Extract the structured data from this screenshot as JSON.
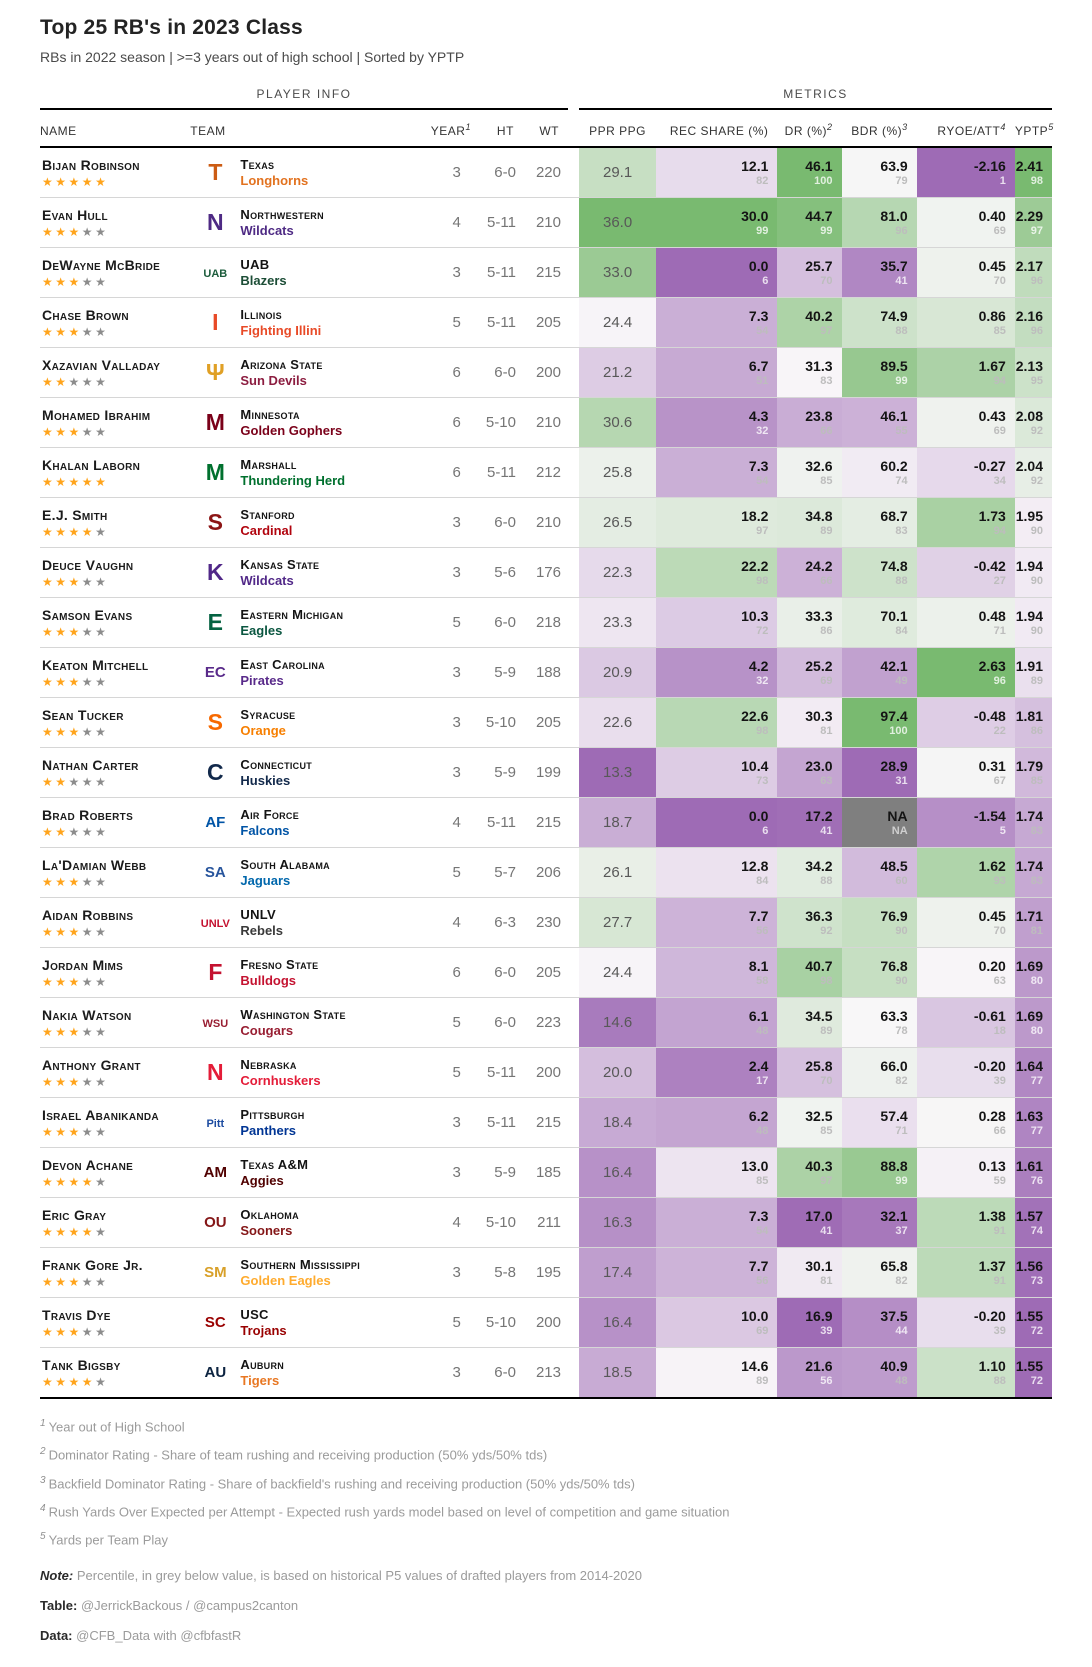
{
  "title": "Top 25 RB's in 2023 Class",
  "subtitle": "RBs in 2022 season | >=3 years out of high school | Sorted by YPTP",
  "header": {
    "spanners": {
      "player_info": "PLAYER INFO",
      "metrics": "METRICS"
    },
    "cols": {
      "name": "NAME",
      "team": "TEAM",
      "year": "YEAR",
      "year_sup": "1",
      "ht": "HT",
      "wt": "WT",
      "ppr": "PPR PPG",
      "rec": "REC SHARE (%)",
      "dr": "DR (%)",
      "dr_sup": "2",
      "bdr": "BDR (%)",
      "bdr_sup": "3",
      "ryoe": "RYOE/ATT",
      "ryoe_sup": "4",
      "yptp": "YPTP",
      "yptp_sup": "5"
    }
  },
  "colors": {
    "green": "#79ba70",
    "white": "#f9f7f9",
    "purple": "#9e6bb5",
    "na_bg": "#7f7f7f",
    "star_filled": "#ffa41c",
    "star_empty": "#8c8c8c",
    "pct_grey": "#bdbdbd",
    "pct_light": "rgba(255,255,255,0.78)"
  },
  "chart_data": {
    "type": "table",
    "title": "Top 25 RB's in 2023 Class",
    "subtitle": "RBs in 2022 season | >=3 years out of high school | Sorted by YPTP",
    "columns": [
      "NAME",
      "TEAM",
      "YEAR",
      "HT",
      "WT",
      "PPR PPG",
      "REC SHARE (%)",
      "DR (%)",
      "BDR (%)",
      "RYOE/ATT",
      "YPTP"
    ],
    "metric_ranges": {
      "ppr": [
        13.3,
        36.0
      ],
      "rec": [
        0.0,
        30.0
      ],
      "dr": [
        16.9,
        46.1
      ],
      "bdr": [
        28.9,
        97.4
      ],
      "ryoe": [
        -2.16,
        2.63
      ],
      "yptp": [
        1.55,
        2.41
      ]
    },
    "rows": [
      {
        "name": "Bijan Robinson",
        "stars": 5,
        "logo": {
          "text": "T",
          "color": "#cc5c14"
        },
        "school": "Texas",
        "nickname": "Longhorns",
        "nick_color": "#e2721f",
        "year": "3",
        "ht": "6-0",
        "wt": "220",
        "ppr": "29.1",
        "rec": "12.1",
        "rec_p": "82",
        "dr": "46.1",
        "dr_p": "100",
        "bdr": "63.9",
        "bdr_p": "79",
        "ryoe": "-2.16",
        "ryoe_p": "1",
        "yptp": "2.41",
        "yptp_p": "98"
      },
      {
        "name": "Evan Hull",
        "stars": 3,
        "logo": {
          "text": "N",
          "color": "#4e2a84"
        },
        "school": "Northwestern",
        "nickname": "Wildcats",
        "nick_color": "#4e2a84",
        "year": "4",
        "ht": "5-11",
        "wt": "210",
        "ppr": "36.0",
        "rec": "30.0",
        "rec_p": "99",
        "dr": "44.7",
        "dr_p": "99",
        "bdr": "81.0",
        "bdr_p": "96",
        "ryoe": "0.40",
        "ryoe_p": "69",
        "yptp": "2.29",
        "yptp_p": "97"
      },
      {
        "name": "DeWayne McBride",
        "stars": 3,
        "logo": {
          "text": "UAB",
          "color": "#1c5c3c"
        },
        "school": "UAB",
        "nickname": "Blazers",
        "nick_color": "#1c4d36",
        "year": "3",
        "ht": "5-11",
        "wt": "215",
        "ppr": "33.0",
        "rec": "0.0",
        "rec_p": "6",
        "dr": "25.7",
        "dr_p": "70",
        "bdr": "35.7",
        "bdr_p": "41",
        "ryoe": "0.45",
        "ryoe_p": "70",
        "yptp": "2.17",
        "yptp_p": "96"
      },
      {
        "name": "Chase Brown",
        "stars": 3,
        "logo": {
          "text": "I",
          "color": "#e84a27"
        },
        "school": "Illinois",
        "nickname": "Fighting Illini",
        "nick_color": "#e84a27",
        "year": "5",
        "ht": "5-11",
        "wt": "205",
        "ppr": "24.4",
        "rec": "7.3",
        "rec_p": "54",
        "dr": "40.2",
        "dr_p": "97",
        "bdr": "74.9",
        "bdr_p": "88",
        "ryoe": "0.86",
        "ryoe_p": "85",
        "yptp": "2.16",
        "yptp_p": "96"
      },
      {
        "name": "Xazavian Valladay",
        "stars": 2,
        "logo": {
          "text": "Ψ",
          "color": "#e0a025"
        },
        "school": "Arizona State",
        "nickname": "Sun Devils",
        "nick_color": "#8c1d40",
        "year": "6",
        "ht": "6-0",
        "wt": "200",
        "ppr": "21.2",
        "rec": "6.7",
        "rec_p": "51",
        "dr": "31.3",
        "dr_p": "83",
        "bdr": "89.5",
        "bdr_p": "99",
        "ryoe": "1.67",
        "ryoe_p": "94",
        "yptp": "2.13",
        "yptp_p": "95"
      },
      {
        "name": "Mohamed Ibrahim",
        "stars": 3,
        "logo": {
          "text": "M",
          "color": "#7a0019"
        },
        "school": "Minnesota",
        "nickname": "Golden Gophers",
        "nick_color": "#7a0019",
        "year": "6",
        "ht": "5-10",
        "wt": "210",
        "ppr": "30.6",
        "rec": "4.3",
        "rec_p": "32",
        "dr": "23.8",
        "dr_p": "66",
        "bdr": "46.1",
        "bdr_p": "55",
        "ryoe": "0.43",
        "ryoe_p": "69",
        "yptp": "2.08",
        "yptp_p": "92"
      },
      {
        "name": "Khalan Laborn",
        "stars": 5,
        "logo": {
          "text": "M",
          "color": "#00702e"
        },
        "school": "Marshall",
        "nickname": "Thundering Herd",
        "nick_color": "#00702e",
        "year": "6",
        "ht": "5-11",
        "wt": "212",
        "ppr": "25.8",
        "rec": "7.3",
        "rec_p": "54",
        "dr": "32.6",
        "dr_p": "85",
        "bdr": "60.2",
        "bdr_p": "74",
        "ryoe": "-0.27",
        "ryoe_p": "34",
        "yptp": "2.04",
        "yptp_p": "92"
      },
      {
        "name": "E.J. Smith",
        "stars": 4,
        "logo": {
          "text": "S",
          "color": "#8c1515"
        },
        "school": "Stanford",
        "nickname": "Cardinal",
        "nick_color": "#b1040e",
        "year": "3",
        "ht": "6-0",
        "wt": "210",
        "ppr": "26.5",
        "rec": "18.2",
        "rec_p": "97",
        "dr": "34.8",
        "dr_p": "89",
        "bdr": "68.7",
        "bdr_p": "83",
        "ryoe": "1.73",
        "ryoe_p": "94",
        "yptp": "1.95",
        "yptp_p": "90"
      },
      {
        "name": "Deuce Vaughn",
        "stars": 3,
        "logo": {
          "text": "K",
          "color": "#512888"
        },
        "school": "Kansas State",
        "nickname": "Wildcats",
        "nick_color": "#512888",
        "year": "3",
        "ht": "5-6",
        "wt": "176",
        "ppr": "22.3",
        "rec": "22.2",
        "rec_p": "98",
        "dr": "24.2",
        "dr_p": "66",
        "bdr": "74.8",
        "bdr_p": "88",
        "ryoe": "-0.42",
        "ryoe_p": "27",
        "yptp": "1.94",
        "yptp_p": "90"
      },
      {
        "name": "Samson Evans",
        "stars": 3,
        "logo": {
          "text": "E",
          "color": "#046241"
        },
        "school": "Eastern Michigan",
        "nickname": "Eagles",
        "nick_color": "#0a5640",
        "year": "5",
        "ht": "6-0",
        "wt": "218",
        "ppr": "23.3",
        "rec": "10.3",
        "rec_p": "72",
        "dr": "33.3",
        "dr_p": "86",
        "bdr": "70.1",
        "bdr_p": "84",
        "ryoe": "0.48",
        "ryoe_p": "71",
        "yptp": "1.94",
        "yptp_p": "90"
      },
      {
        "name": "Keaton Mitchell",
        "stars": 3,
        "logo": {
          "text": "EC",
          "color": "#592a8a"
        },
        "school": "East Carolina",
        "nickname": "Pirates",
        "nick_color": "#592a8a",
        "year": "3",
        "ht": "5-9",
        "wt": "188",
        "ppr": "20.9",
        "rec": "4.2",
        "rec_p": "32",
        "dr": "25.2",
        "dr_p": "69",
        "bdr": "42.1",
        "bdr_p": "49",
        "ryoe": "2.63",
        "ryoe_p": "96",
        "yptp": "1.91",
        "yptp_p": "89"
      },
      {
        "name": "Sean Tucker",
        "stars": 3,
        "logo": {
          "text": "S",
          "color": "#f76900"
        },
        "school": "Syracuse",
        "nickname": "Orange",
        "nick_color": "#f77f00",
        "year": "3",
        "ht": "5-10",
        "wt": "205",
        "ppr": "22.6",
        "rec": "22.6",
        "rec_p": "98",
        "dr": "30.3",
        "dr_p": "81",
        "bdr": "97.4",
        "bdr_p": "100",
        "ryoe": "-0.48",
        "ryoe_p": "22",
        "yptp": "1.81",
        "yptp_p": "86"
      },
      {
        "name": "Nathan Carter",
        "stars": 2,
        "logo": {
          "text": "C",
          "color": "#12294b"
        },
        "school": "Connecticut",
        "nickname": "Huskies",
        "nick_color": "#12294b",
        "year": "3",
        "ht": "5-9",
        "wt": "199",
        "ppr": "13.3",
        "rec": "10.4",
        "rec_p": "73",
        "dr": "23.0",
        "dr_p": "63",
        "bdr": "28.9",
        "bdr_p": "31",
        "ryoe": "0.31",
        "ryoe_p": "67",
        "yptp": "1.79",
        "yptp_p": "85"
      },
      {
        "name": "Brad Roberts",
        "stars": 2,
        "logo": {
          "text": "AF",
          "color": "#0054a6"
        },
        "school": "Air Force",
        "nickname": "Falcons",
        "nick_color": "#0054a6",
        "year": "4",
        "ht": "5-11",
        "wt": "215",
        "ppr": "18.7",
        "rec": "0.0",
        "rec_p": "6",
        "dr": "17.2",
        "dr_p": "41",
        "bdr": "NA",
        "bdr_p": "NA",
        "ryoe": "-1.54",
        "ryoe_p": "5",
        "yptp": "1.74",
        "yptp_p": "83"
      },
      {
        "name": "La'Damian Webb",
        "stars": 3,
        "logo": {
          "text": "SA",
          "color": "#27549c"
        },
        "school": "South Alabama",
        "nickname": "Jaguars",
        "nick_color": "#0067ac",
        "year": "5",
        "ht": "5-7",
        "wt": "206",
        "ppr": "26.1",
        "rec": "12.8",
        "rec_p": "84",
        "dr": "34.2",
        "dr_p": "88",
        "bdr": "48.5",
        "bdr_p": "60",
        "ryoe": "1.62",
        "ryoe_p": "93",
        "yptp": "1.74",
        "yptp_p": "83"
      },
      {
        "name": "Aidan Robbins",
        "stars": 3,
        "logo": {
          "text": "UNLV",
          "color": "#c41230"
        },
        "school": "UNLV",
        "nickname": "Rebels",
        "nick_color": "#3a3a3a",
        "year": "4",
        "ht": "6-3",
        "wt": "230",
        "ppr": "27.7",
        "rec": "7.7",
        "rec_p": "56",
        "dr": "36.3",
        "dr_p": "92",
        "bdr": "76.9",
        "bdr_p": "90",
        "ryoe": "0.45",
        "ryoe_p": "70",
        "yptp": "1.71",
        "yptp_p": "81"
      },
      {
        "name": "Jordan Mims",
        "stars": 3,
        "logo": {
          "text": "F",
          "color": "#c41230"
        },
        "school": "Fresno State",
        "nickname": "Bulldogs",
        "nick_color": "#c41230",
        "year": "6",
        "ht": "6-0",
        "wt": "205",
        "ppr": "24.4",
        "rec": "8.1",
        "rec_p": "58",
        "dr": "40.7",
        "dr_p": "98",
        "bdr": "76.8",
        "bdr_p": "90",
        "ryoe": "0.20",
        "ryoe_p": "63",
        "yptp": "1.69",
        "yptp_p": "80"
      },
      {
        "name": "Nakia Watson",
        "stars": 3,
        "logo": {
          "text": "WSU",
          "color": "#981e32"
        },
        "school": "Washington State",
        "nickname": "Cougars",
        "nick_color": "#981e32",
        "year": "5",
        "ht": "6-0",
        "wt": "223",
        "ppr": "14.6",
        "rec": "6.1",
        "rec_p": "48",
        "dr": "34.5",
        "dr_p": "89",
        "bdr": "63.3",
        "bdr_p": "78",
        "ryoe": "-0.61",
        "ryoe_p": "18",
        "yptp": "1.69",
        "yptp_p": "80"
      },
      {
        "name": "Anthony Grant",
        "stars": 3,
        "logo": {
          "text": "N",
          "color": "#e41c38"
        },
        "school": "Nebraska",
        "nickname": "Cornhuskers",
        "nick_color": "#e41c38",
        "year": "5",
        "ht": "5-11",
        "wt": "200",
        "ppr": "20.0",
        "rec": "2.4",
        "rec_p": "17",
        "dr": "25.8",
        "dr_p": "70",
        "bdr": "66.0",
        "bdr_p": "82",
        "ryoe": "-0.20",
        "ryoe_p": "39",
        "yptp": "1.64",
        "yptp_p": "77"
      },
      {
        "name": "Israel Abanikanda",
        "stars": 3,
        "logo": {
          "text": "Pitt",
          "color": "#1c4ba0"
        },
        "school": "Pittsburgh",
        "nickname": "Panthers",
        "nick_color": "#003594",
        "year": "3",
        "ht": "5-11",
        "wt": "215",
        "ppr": "18.4",
        "rec": "6.2",
        "rec_p": "48",
        "dr": "32.5",
        "dr_p": "85",
        "bdr": "57.4",
        "bdr_p": "71",
        "ryoe": "0.28",
        "ryoe_p": "66",
        "yptp": "1.63",
        "yptp_p": "77"
      },
      {
        "name": "Devon Achane",
        "stars": 4,
        "logo": {
          "text": "AM",
          "color": "#500000"
        },
        "school": "Texas A&M",
        "nickname": "Aggies",
        "nick_color": "#500000",
        "year": "3",
        "ht": "5-9",
        "wt": "185",
        "ppr": "16.4",
        "rec": "13.0",
        "rec_p": "85",
        "dr": "40.3",
        "dr_p": "97",
        "bdr": "88.8",
        "bdr_p": "99",
        "ryoe": "0.13",
        "ryoe_p": "59",
        "yptp": "1.61",
        "yptp_p": "76"
      },
      {
        "name": "Eric Gray",
        "stars": 4,
        "logo": {
          "text": "OU",
          "color": "#841617"
        },
        "school": "Oklahoma",
        "nickname": "Sooners",
        "nick_color": "#841617",
        "year": "4",
        "ht": "5-10",
        "wt": "211",
        "ppr": "16.3",
        "rec": "7.3",
        "rec_p": "54",
        "dr": "17.0",
        "dr_p": "41",
        "bdr": "32.1",
        "bdr_p": "37",
        "ryoe": "1.38",
        "ryoe_p": "91",
        "yptp": "1.57",
        "yptp_p": "74"
      },
      {
        "name": "Frank Gore Jr.",
        "stars": 3,
        "logo": {
          "text": "SM",
          "color": "#d8a029"
        },
        "school": "Southern Mississippi",
        "nickname": "Golden Eagles",
        "nick_color": "#ffab2e",
        "year": "3",
        "ht": "5-8",
        "wt": "195",
        "ppr": "17.4",
        "rec": "7.7",
        "rec_p": "56",
        "dr": "30.1",
        "dr_p": "81",
        "bdr": "65.8",
        "bdr_p": "82",
        "ryoe": "1.37",
        "ryoe_p": "91",
        "yptp": "1.56",
        "yptp_p": "73"
      },
      {
        "name": "Travis Dye",
        "stars": 3,
        "logo": {
          "text": "SC",
          "color": "#990000"
        },
        "school": "USC",
        "nickname": "Trojans",
        "nick_color": "#990000",
        "year": "5",
        "ht": "5-10",
        "wt": "200",
        "ppr": "16.4",
        "rec": "10.0",
        "rec_p": "69",
        "dr": "16.9",
        "dr_p": "39",
        "bdr": "37.5",
        "bdr_p": "44",
        "ryoe": "-0.20",
        "ryoe_p": "39",
        "yptp": "1.55",
        "yptp_p": "72"
      },
      {
        "name": "Tank Bigsby",
        "stars": 4,
        "logo": {
          "text": "AU",
          "color": "#0c2340"
        },
        "school": "Auburn",
        "nickname": "Tigers",
        "nick_color": "#e87722",
        "year": "3",
        "ht": "6-0",
        "wt": "213",
        "ppr": "18.5",
        "rec": "14.6",
        "rec_p": "89",
        "dr": "21.6",
        "dr_p": "56",
        "bdr": "40.9",
        "bdr_p": "48",
        "ryoe": "1.10",
        "ryoe_p": "88",
        "yptp": "1.55",
        "yptp_p": "72"
      }
    ]
  },
  "footnotes": [
    {
      "num": "1",
      "text": "Year out of High School"
    },
    {
      "num": "2",
      "text": "Dominator Rating - Share of team rushing and receiving production (50% yds/50% tds)"
    },
    {
      "num": "3",
      "text": "Backfield Dominator Rating - Share of backfield's rushing and receiving production (50% yds/50% tds)"
    },
    {
      "num": "4",
      "text": "Rush Yards Over Expected per Attempt - Expected rush yards model based on level of competition and game situation"
    },
    {
      "num": "5",
      "text": "Yards per Team Play"
    }
  ],
  "note": {
    "label": "Note:",
    "text": "Percentile, in grey below value, is based on historical P5 values of drafted players from 2014-2020"
  },
  "table_credit": {
    "label": "Table:",
    "text": "@JerrickBackous / @campus2canton"
  },
  "data_credit": {
    "label": "Data:",
    "text": "@CFB_Data with @cfbfastR"
  }
}
